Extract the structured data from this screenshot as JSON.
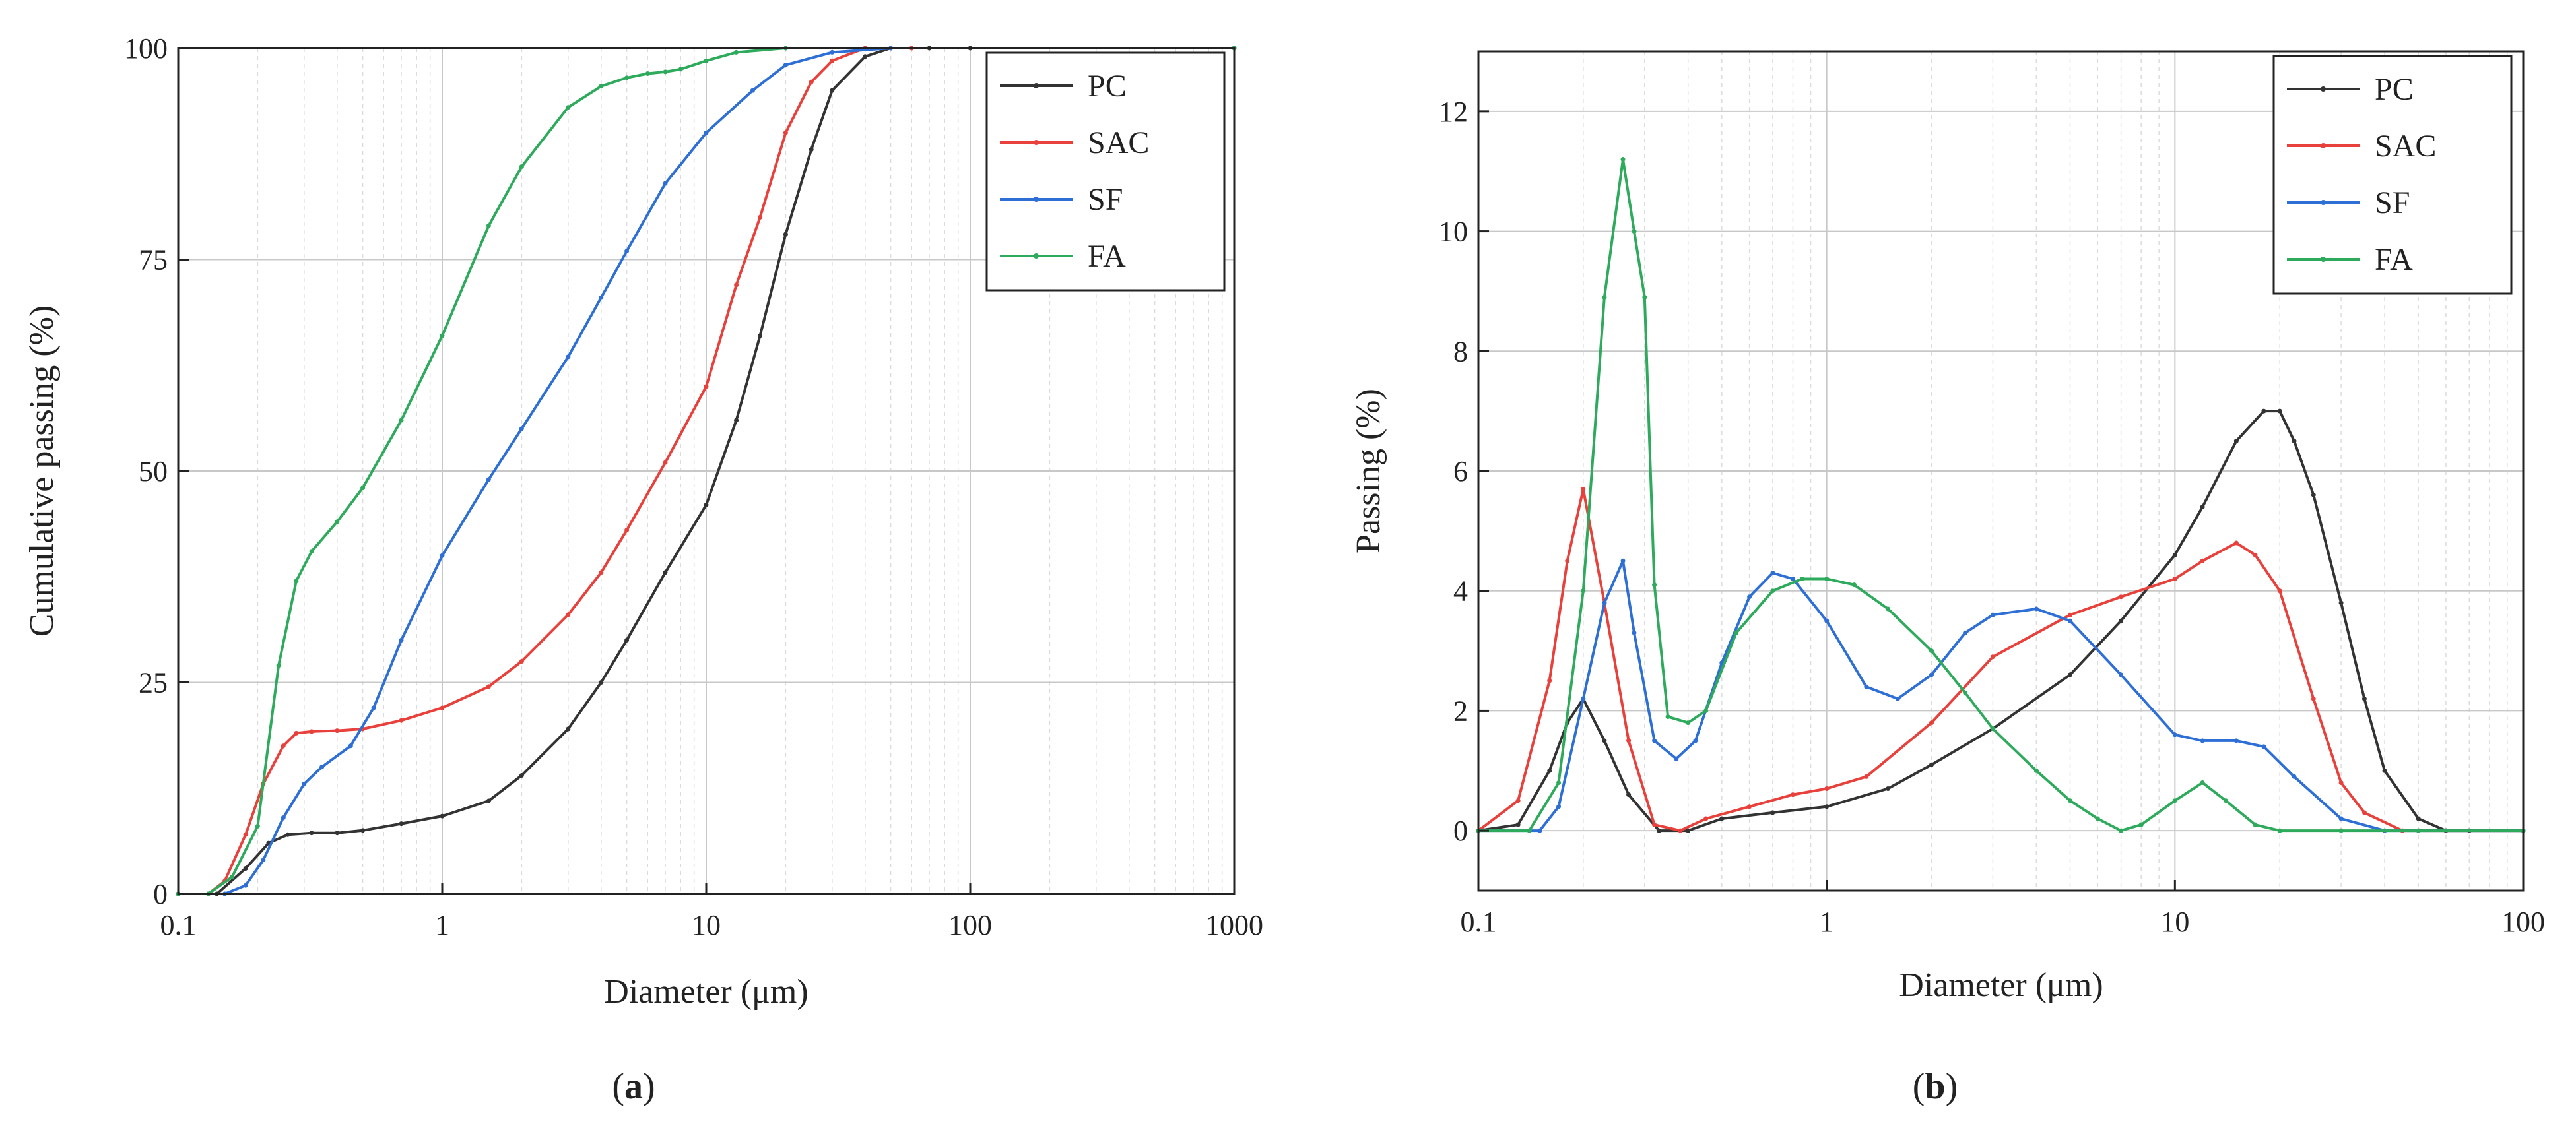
{
  "chart_data": [
    {
      "type": "line",
      "panel": "a",
      "caption_prefix": "(",
      "caption_letter": "a",
      "caption_suffix": ")",
      "xlabel": "Diameter (μm)",
      "ylabel": "Cumulative passing (%)",
      "xscale": "log",
      "xlim": [
        0.1,
        1000
      ],
      "ylim": [
        0,
        100
      ],
      "xticks": [
        0.1,
        1,
        10,
        100,
        1000
      ],
      "xtick_labels": [
        "0.1",
        "1",
        "10",
        "100",
        "1000"
      ],
      "yticks": [
        0,
        25,
        50,
        75,
        100
      ],
      "ytick_labels": [
        "0",
        "25",
        "50",
        "75",
        "100"
      ],
      "grid": true,
      "legend_position": "top-right",
      "series": [
        {
          "name": "PC",
          "color": "#333333",
          "x": [
            0.1,
            0.14,
            0.18,
            0.22,
            0.26,
            0.32,
            0.4,
            0.5,
            0.7,
            1.0,
            1.5,
            2.0,
            3.0,
            4.0,
            5.0,
            7.0,
            10.0,
            13.0,
            16.0,
            20.0,
            25.0,
            30.0,
            40.0,
            50.0,
            70.0,
            100.0,
            1000.0
          ],
          "y": [
            0,
            0,
            3,
            6,
            7,
            7.2,
            7.2,
            7.5,
            8.3,
            9.2,
            11,
            14,
            19.5,
            25,
            30,
            38,
            46,
            56,
            66,
            78,
            88,
            95,
            99,
            100,
            100,
            100,
            100
          ]
        },
        {
          "name": "SAC",
          "color": "#e8403a",
          "x": [
            0.1,
            0.13,
            0.15,
            0.18,
            0.21,
            0.25,
            0.28,
            0.32,
            0.4,
            0.5,
            0.7,
            1.0,
            1.5,
            2.0,
            3.0,
            4.0,
            5.0,
            7.0,
            10.0,
            13.0,
            16.0,
            20.0,
            25.0,
            30.0,
            40.0,
            60.0,
            1000.0
          ],
          "y": [
            0,
            0,
            1.5,
            7,
            13,
            17.5,
            19,
            19.2,
            19.3,
            19.5,
            20.5,
            22,
            24.5,
            27.5,
            33,
            38,
            43,
            51,
            60,
            72,
            80,
            90,
            96,
            98.5,
            100,
            100,
            100
          ]
        },
        {
          "name": "SF",
          "color": "#2e6fd6",
          "x": [
            0.1,
            0.15,
            0.18,
            0.21,
            0.25,
            0.3,
            0.35,
            0.45,
            0.55,
            0.7,
            1.0,
            1.5,
            2.0,
            3.0,
            4.0,
            5.0,
            7.0,
            10.0,
            15.0,
            20.0,
            30.0,
            50.0,
            1000.0
          ],
          "y": [
            0,
            0,
            1,
            4,
            9,
            13,
            15,
            17.5,
            22,
            30,
            40,
            49,
            55,
            63.5,
            70.5,
            76,
            84,
            90,
            95,
            98,
            99.5,
            100,
            100
          ]
        },
        {
          "name": "FA",
          "color": "#2eaa5c",
          "x": [
            0.1,
            0.13,
            0.16,
            0.2,
            0.24,
            0.28,
            0.32,
            0.4,
            0.5,
            0.7,
            1.0,
            1.5,
            2.0,
            3.0,
            4.0,
            5.0,
            6.0,
            7.0,
            8.0,
            10.0,
            13.0,
            20.0,
            1000.0
          ],
          "y": [
            0,
            0,
            2,
            8,
            27,
            37,
            40.5,
            44,
            48,
            56,
            66,
            79,
            86,
            93,
            95.5,
            96.5,
            97,
            97.2,
            97.5,
            98.5,
            99.5,
            100,
            100
          ]
        }
      ]
    },
    {
      "type": "line",
      "panel": "b",
      "caption_prefix": "(",
      "caption_letter": "b",
      "caption_suffix": ")",
      "xlabel": "Diameter (μm)",
      "ylabel": "Passing (%)",
      "xscale": "log",
      "xlim": [
        0.1,
        100
      ],
      "ylim": [
        -1,
        13
      ],
      "xticks": [
        0.1,
        1,
        10,
        100
      ],
      "xtick_labels": [
        "0.1",
        "1",
        "10",
        "100"
      ],
      "yticks": [
        0,
        2,
        4,
        6,
        8,
        10,
        12
      ],
      "ytick_labels": [
        "0",
        "2",
        "4",
        "6",
        "8",
        "10",
        "12"
      ],
      "grid": true,
      "legend_position": "top-right",
      "series": [
        {
          "name": "PC",
          "color": "#333333",
          "x": [
            0.1,
            0.13,
            0.16,
            0.18,
            0.2,
            0.23,
            0.27,
            0.33,
            0.4,
            0.5,
            0.7,
            1.0,
            1.5,
            2.0,
            3.0,
            5.0,
            7.0,
            10.0,
            12.0,
            15.0,
            18.0,
            20.0,
            22.0,
            25.0,
            30.0,
            35.0,
            40.0,
            50.0,
            60.0,
            70.0,
            100.0
          ],
          "y": [
            0,
            0.1,
            1.0,
            1.8,
            2.2,
            1.5,
            0.6,
            0,
            0,
            0.2,
            0.3,
            0.4,
            0.7,
            1.1,
            1.7,
            2.6,
            3.5,
            4.6,
            5.4,
            6.5,
            7.0,
            7.0,
            6.5,
            5.6,
            3.8,
            2.2,
            1.0,
            0.2,
            0,
            0,
            0
          ]
        },
        {
          "name": "SAC",
          "color": "#e8403a",
          "x": [
            0.1,
            0.13,
            0.16,
            0.18,
            0.2,
            0.23,
            0.27,
            0.32,
            0.38,
            0.45,
            0.6,
            0.8,
            1.0,
            1.3,
            2.0,
            3.0,
            5.0,
            7.0,
            10.0,
            12.0,
            15.0,
            17.0,
            20.0,
            25.0,
            30.0,
            35.0,
            45.0,
            100.0
          ],
          "y": [
            0,
            0.5,
            2.5,
            4.5,
            5.7,
            3.8,
            1.5,
            0.1,
            0,
            0.2,
            0.4,
            0.6,
            0.7,
            0.9,
            1.8,
            2.9,
            3.6,
            3.9,
            4.2,
            4.5,
            4.8,
            4.6,
            4.0,
            2.2,
            0.8,
            0.3,
            0,
            0
          ]
        },
        {
          "name": "SF",
          "color": "#2e6fd6",
          "x": [
            0.1,
            0.15,
            0.17,
            0.2,
            0.23,
            0.26,
            0.28,
            0.32,
            0.37,
            0.42,
            0.5,
            0.6,
            0.7,
            0.8,
            1.0,
            1.3,
            1.6,
            2.0,
            2.5,
            3.0,
            4.0,
            5.0,
            7.0,
            10.0,
            12.0,
            15.0,
            18.0,
            22.0,
            30.0,
            40.0,
            50.0,
            100.0
          ],
          "y": [
            0,
            0,
            0.4,
            2.2,
            3.8,
            4.5,
            3.3,
            1.5,
            1.2,
            1.5,
            2.8,
            3.9,
            4.3,
            4.2,
            3.5,
            2.4,
            2.2,
            2.6,
            3.3,
            3.6,
            3.7,
            3.5,
            2.6,
            1.6,
            1.5,
            1.5,
            1.4,
            0.9,
            0.2,
            0,
            0,
            0
          ]
        },
        {
          "name": "FA",
          "color": "#2eaa5c",
          "x": [
            0.1,
            0.14,
            0.17,
            0.2,
            0.23,
            0.26,
            0.28,
            0.3,
            0.32,
            0.35,
            0.4,
            0.45,
            0.55,
            0.7,
            0.85,
            1.0,
            1.2,
            1.5,
            2.0,
            2.5,
            3.0,
            4.0,
            5.0,
            6.0,
            7.0,
            8.0,
            10.0,
            12.0,
            14.0,
            17.0,
            20.0,
            30.0,
            50.0,
            100.0
          ],
          "y": [
            0,
            0,
            0.8,
            4.0,
            8.9,
            11.2,
            10.0,
            8.9,
            4.1,
            1.9,
            1.8,
            2.0,
            3.3,
            4.0,
            4.2,
            4.2,
            4.1,
            3.7,
            3.0,
            2.3,
            1.7,
            1.0,
            0.5,
            0.2,
            0,
            0.1,
            0.5,
            0.8,
            0.5,
            0.1,
            0,
            0,
            0,
            0
          ]
        }
      ]
    }
  ]
}
